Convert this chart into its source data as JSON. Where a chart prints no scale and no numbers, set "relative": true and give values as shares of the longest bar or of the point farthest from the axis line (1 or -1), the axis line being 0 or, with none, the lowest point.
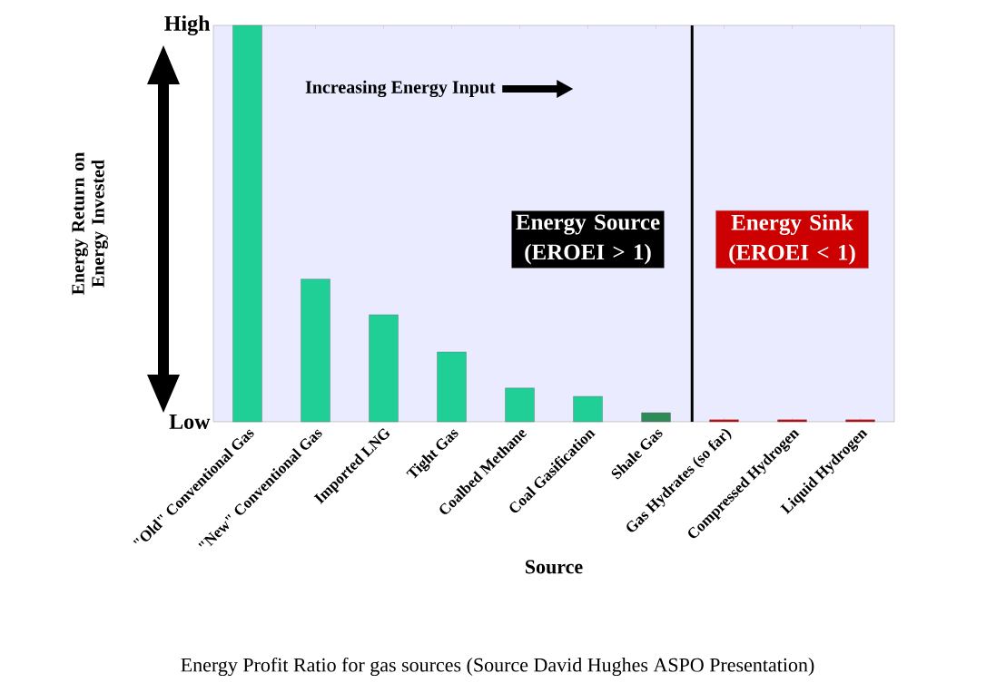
{
  "chart_data": {
    "type": "bar",
    "relative": true,
    "ylabel": "Energy Return on Energy Invested",
    "xlabel": "Source",
    "categories": [
      "\"Old\" Conventional Gas",
      "\"New\" Conventional Gas",
      "Imported LNG",
      "Tight Gas",
      "Coalbed Methane",
      "Coal Gasification",
      "Shale Gas",
      "Gas Hydrates (so far)",
      "Compressed Hydrogen",
      "Liquid Hydrogen"
    ],
    "values": [
      1.0,
      0.36,
      0.27,
      0.176,
      0.085,
      0.064,
      0.023,
      0.005,
      0.005,
      0.005
    ],
    "colors": [
      "#1fcf96",
      "#1fcf96",
      "#1fcf96",
      "#1fcf96",
      "#1fcf96",
      "#1fcf96",
      "#2e8b57",
      "#cc0000",
      "#cc0000",
      "#cc0000"
    ],
    "annotations": [
      "High",
      "Low",
      "Increasing Energy Input",
      "Energy Source (EROEI > 1)",
      "Energy Sink (EROEI < 1)",
      "Energy Profit Ratio for gas sources (Source David Hughes ASPO Presentation)"
    ]
  }
}
